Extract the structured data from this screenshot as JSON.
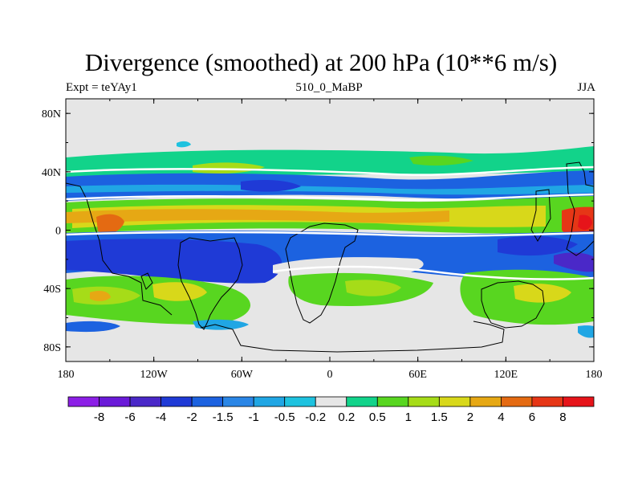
{
  "chart_data": {
    "type": "heatmap",
    "title": "Divergence (smoothed) at 200 hPa (10**6 m/s)",
    "subtitle_left": "Expt = teYAy1",
    "subtitle_center": "510_0_MaBP",
    "subtitle_right": "JJA",
    "x_ticks": [
      "180",
      "120W",
      "60W",
      "0",
      "60E",
      "120E",
      "180"
    ],
    "y_ticks": [
      "80N",
      "40N",
      "0",
      "40S",
      "80S"
    ],
    "x_range": [
      -180,
      180
    ],
    "y_range": [
      90,
      -90
    ],
    "colorbar": {
      "colors": [
        "#8c1fe6",
        "#6a1ad8",
        "#4a28c8",
        "#1f3ad6",
        "#1c62e0",
        "#2a86e6",
        "#20a6e4",
        "#1ec2df",
        "#e6e6e6",
        "#12d38a",
        "#58d620",
        "#a6dc18",
        "#d8d81a",
        "#e6a814",
        "#e46a12",
        "#e63616",
        "#e6141a"
      ],
      "labels": [
        "-8",
        "-6",
        "-4",
        "-2",
        "-1.5",
        "-1",
        "-0.5",
        "-0.2",
        "0.2",
        "0.5",
        "1",
        "1.5",
        "2",
        "4",
        "6",
        "8"
      ]
    }
  }
}
